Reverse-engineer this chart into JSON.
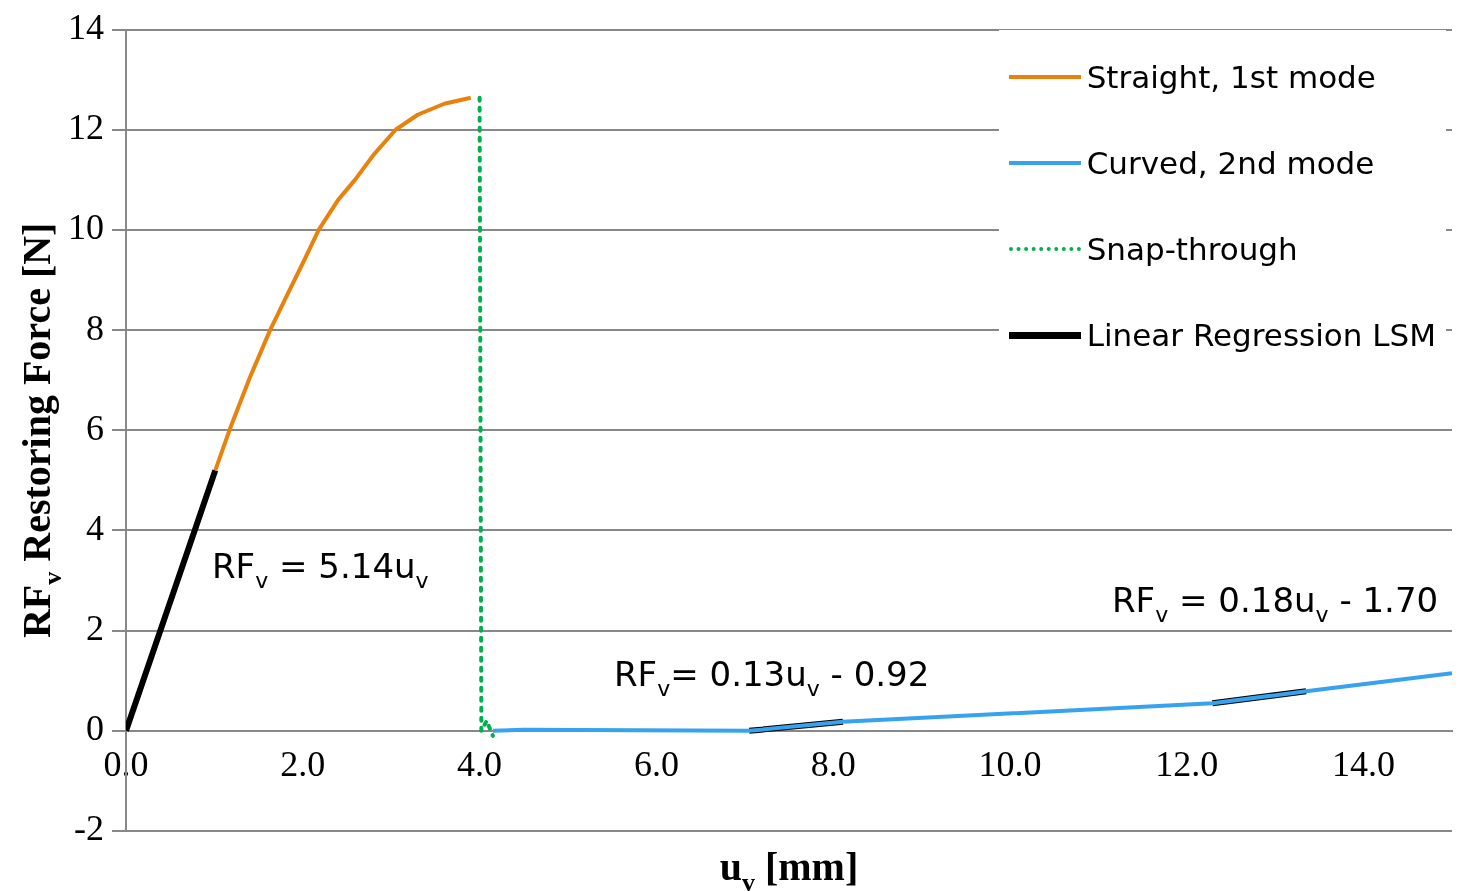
{
  "chart_data": {
    "type": "line",
    "xlabel": "u$_{v}$ [mm]",
    "ylabel": "RF$_{v}$ Restoring Force [N]",
    "xlim": [
      0,
      15
    ],
    "ylim": [
      -2,
      14
    ],
    "xticks": [
      {
        "value": 0,
        "label": "0.0"
      },
      {
        "value": 2,
        "label": "2.0"
      },
      {
        "value": 4,
        "label": "4.0"
      },
      {
        "value": 6,
        "label": "6.0"
      },
      {
        "value": 8,
        "label": "8.0"
      },
      {
        "value": 10,
        "label": "10.0"
      },
      {
        "value": 12,
        "label": "12.0"
      },
      {
        "value": 14,
        "label": "14.0"
      }
    ],
    "yticks": [
      -2,
      0,
      2,
      4,
      6,
      8,
      10,
      12,
      14
    ],
    "grid": "y",
    "legend": "top right",
    "marker": "none",
    "series": [
      {
        "name": "Straight, 1st mode",
        "color": "#e8820c",
        "line_style": "solid",
        "x": [
          1.01,
          1.17,
          1.4,
          1.63,
          1.85,
          2.02,
          2.18,
          2.4,
          2.59,
          2.8,
          3.05,
          3.3,
          3.6,
          3.9
        ],
        "values": [
          5.2,
          6,
          7.05,
          8,
          8.8,
          9.41,
          10,
          10.6,
          11,
          11.5,
          12,
          12.3,
          12.52,
          12.64
        ]
      },
      {
        "name": "Curved, 2nd mode",
        "color": "#36a2f0",
        "line_style": "solid",
        "x": [
          4.15,
          4.5,
          7.05,
          8.11,
          12.29,
          13.35,
          15
        ],
        "values": [
          0,
          0.02,
          0,
          0.18,
          0.55,
          0.79,
          1.15
        ]
      },
      {
        "name": "Snap-through",
        "color": "#00b050",
        "line_style": "dotted",
        "x": [
          4.0,
          4.02,
          4.08,
          4.15
        ],
        "values": [
          12.64,
          0,
          0.2,
          -0.1
        ]
      },
      {
        "name": "Linear Regression LSM",
        "color": "#000000",
        "line_style": "solid",
        "x": [
          0,
          1.01,
          4,
          7.05,
          8.11,
          10,
          12.29,
          13.35
        ],
        "values": [
          0,
          5.2,
          null,
          0,
          0.18,
          null,
          0.55,
          0.79
        ]
      }
    ],
    "annotations": [
      "RF$_{v}$ = 5.14u$_{v}$",
      "RF$_{v}$= 0.13u$_{v}$ - 0.92",
      "RF$_{v}$ = 0.18u$_{v}$ - 1.70"
    ]
  }
}
